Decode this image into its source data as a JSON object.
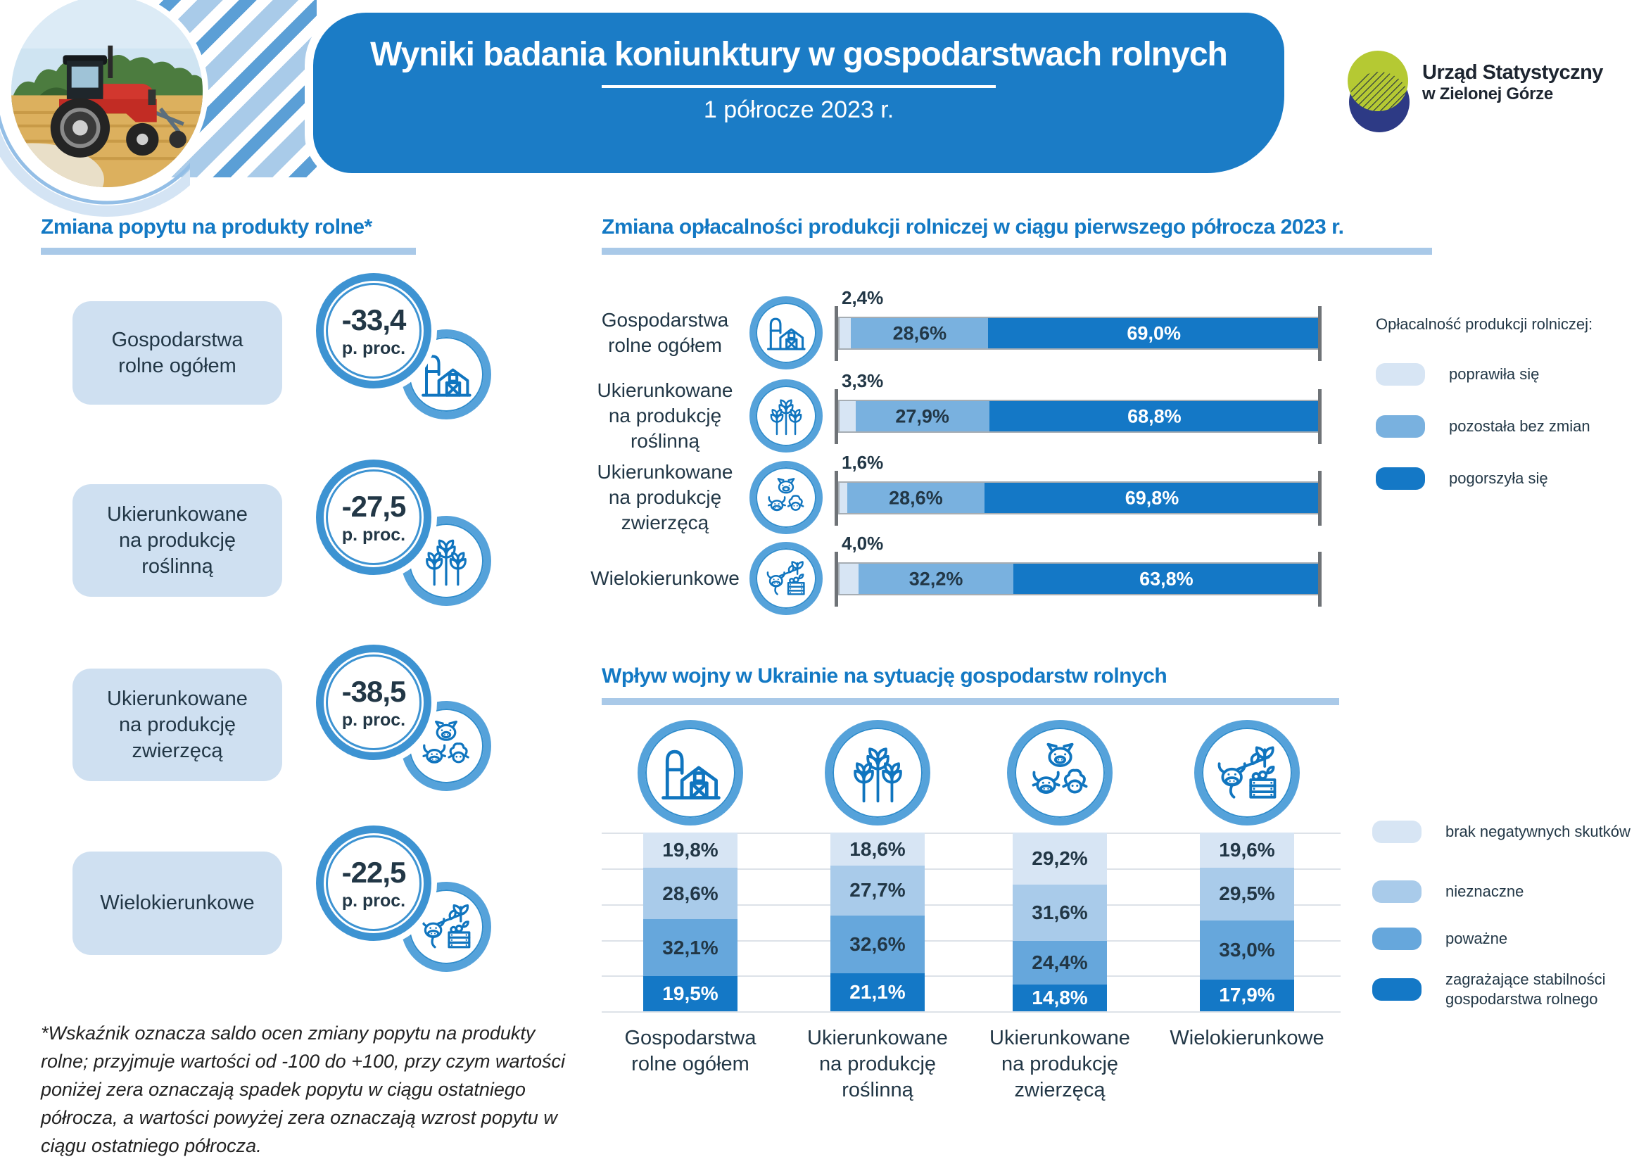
{
  "palette": {
    "primary_blue": "#1b7cc6",
    "title_blue": "#1379c4",
    "underline_blue": "#a9c9e8",
    "label_box_blue": "#cfe0f1",
    "icon_ring_blue": "#55a2da",
    "dark_text": "#223746",
    "logo_green": "#b5c933",
    "logo_navy": "#2d3a85"
  },
  "header": {
    "title": "Wyniki badania koniunktury w gospodarstwach rolnych",
    "subtitle": "1 półrocze 2023 r.",
    "logo_line1": "Urząd Statystyczny",
    "logo_line2": "w Zielonej Górze"
  },
  "demand": {
    "title": "Zmiana popytu na produkty rolne*",
    "unit": "p. proc.",
    "items": [
      {
        "label": "Gospodarstwa rolne ogółem",
        "value": -33.4,
        "icon": "barn-icon"
      },
      {
        "label": "Ukierunkowane na produkcję roślinną",
        "value": -27.5,
        "icon": "wheat-icon"
      },
      {
        "label": "Ukierunkowane na produkcję zwierzęcą",
        "value": -38.5,
        "icon": "livestock-icon"
      },
      {
        "label": "Wielokierunkowe",
        "value": -22.5,
        "icon": "mixed-farming-icon"
      }
    ],
    "footnote": "*Wskaźnik oznacza saldo ocen zmiany popytu na produkty rolne; przyjmuje wartości od -100 do +100, przy czym wartości poniżej zera oznaczają spadek popytu w ciągu ostatniego półrocza, a wartości powyżej zera oznaczają wzrost popytu w ciągu ostatniego półrocza."
  },
  "chart_data": [
    {
      "type": "bar",
      "orientation": "horizontal",
      "stacked": true,
      "title": "Zmiana opłacalności produkcji rolniczej w ciągu pierwszego półrocza 2023 r.",
      "legend_title": "Opłacalność produkcji rolniczej:",
      "legend_position": "right",
      "unit": "%",
      "xlim": [
        0,
        100
      ],
      "categories": [
        "Gospodarstwa rolne ogółem",
        "Ukierunkowane na produkcję roślinną",
        "Ukierunkowane na produkcję zwierzęcą",
        "Wielokierunkowe"
      ],
      "series": [
        {
          "name": "poprawiła się",
          "color": "#d7e5f4",
          "values": [
            2.4,
            3.3,
            1.6,
            4.0
          ]
        },
        {
          "name": "pozostała bez zmian",
          "color": "#79b1df",
          "values": [
            28.6,
            27.9,
            28.6,
            32.2
          ]
        },
        {
          "name": "pogorszyła się",
          "color": "#1478c6",
          "values": [
            69.0,
            68.8,
            69.8,
            63.8
          ]
        }
      ]
    },
    {
      "type": "bar",
      "orientation": "vertical",
      "stacked": true,
      "title": "Wpływ wojny w Ukrainie na sytuację gospodarstw rolnych",
      "legend_position": "right",
      "unit": "%",
      "ylim": [
        0,
        100
      ],
      "grid": true,
      "categories": [
        "Gospodarstwa rolne ogółem",
        "Ukierunkowane na produkcję roślinną",
        "Ukierunkowane na produkcję zwierzęcą",
        "Wielokierunkowe"
      ],
      "series": [
        {
          "name": "brak negatywnych skutków",
          "color": "#d7e5f4",
          "values": [
            19.8,
            18.6,
            29.2,
            19.6
          ]
        },
        {
          "name": "nieznaczne",
          "color": "#a9cbea",
          "values": [
            28.6,
            27.7,
            31.6,
            29.5
          ]
        },
        {
          "name": "poważne",
          "color": "#66a7dc",
          "values": [
            32.1,
            32.6,
            24.4,
            33.0
          ]
        },
        {
          "name": "zagrażające stabilności gospodarstwa rolnego",
          "color": "#1478c6",
          "values": [
            19.5,
            21.1,
            14.8,
            17.9
          ]
        }
      ]
    }
  ]
}
